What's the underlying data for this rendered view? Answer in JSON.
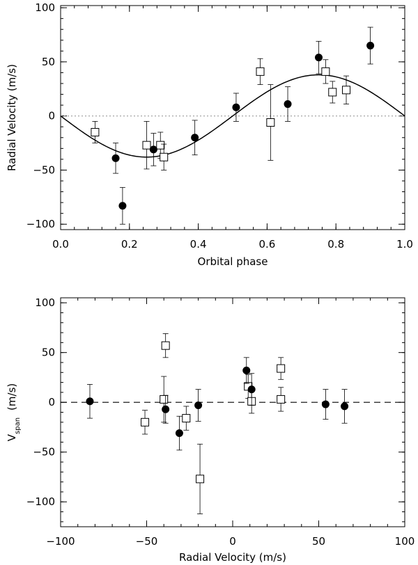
{
  "chart_data": [
    {
      "type": "scatter",
      "id": "rv-phase",
      "xlabel": "Orbital phase",
      "ylabel": "Radial Velocity (m/s)",
      "xlim": [
        0.0,
        1.0
      ],
      "ylim": [
        -105,
        102
      ],
      "xticks": [
        0.0,
        0.2,
        0.4,
        0.6,
        0.8,
        1.0
      ],
      "xtick_labels": [
        "0.0",
        "0.2",
        "0.4",
        "0.6",
        "0.8",
        "1.0"
      ],
      "yticks": [
        -100,
        -50,
        0,
        50,
        100
      ],
      "ytick_labels": [
        "−100",
        "−50",
        "0",
        "50",
        "100"
      ],
      "model": {
        "type": "sine",
        "amplitude": 38,
        "phase_of_max": 0.75
      },
      "reference_line": {
        "y": 0,
        "style": "dotted"
      },
      "series": [
        {
          "name": "open squares",
          "marker": "square-open",
          "points": [
            {
              "x": 0.1,
              "y": -15,
              "err": 10
            },
            {
              "x": 0.25,
              "y": -27,
              "err": 22
            },
            {
              "x": 0.29,
              "y": -27,
              "err": 12
            },
            {
              "x": 0.3,
              "y": -38,
              "err": 12
            },
            {
              "x": 0.58,
              "y": 41,
              "err": 12
            },
            {
              "x": 0.61,
              "y": -6,
              "err": 35
            },
            {
              "x": 0.77,
              "y": 41,
              "err": 11
            },
            {
              "x": 0.79,
              "y": 22,
              "err": 10
            },
            {
              "x": 0.83,
              "y": 24,
              "err": 13
            }
          ]
        },
        {
          "name": "filled circles",
          "marker": "circle-filled",
          "points": [
            {
              "x": 0.16,
              "y": -39,
              "err": 14
            },
            {
              "x": 0.18,
              "y": -83,
              "err": 17
            },
            {
              "x": 0.27,
              "y": -31,
              "err": 15
            },
            {
              "x": 0.39,
              "y": -20,
              "err": 16
            },
            {
              "x": 0.51,
              "y": 8,
              "err": 13
            },
            {
              "x": 0.66,
              "y": 11,
              "err": 16
            },
            {
              "x": 0.75,
              "y": 54,
              "err": 15
            },
            {
              "x": 0.9,
              "y": 65,
              "err": 17
            }
          ]
        }
      ]
    },
    {
      "type": "scatter",
      "id": "vspan-rv",
      "xlabel": "Radial Velocity (m/s)",
      "ylabel_main": "V",
      "ylabel_sub": "span",
      "ylabel_rest": "(m/s)",
      "xlim": [
        -100,
        100
      ],
      "ylim": [
        -125,
        105
      ],
      "xticks": [
        -100,
        -50,
        0,
        50,
        100
      ],
      "xtick_labels": [
        "−100",
        "−50",
        "0",
        "50",
        "100"
      ],
      "yticks": [
        -100,
        -50,
        0,
        50,
        100
      ],
      "ytick_labels": [
        "−100",
        "−50",
        "0",
        "50",
        "100"
      ],
      "reference_line": {
        "y": 0,
        "style": "dashed"
      },
      "series": [
        {
          "name": "open squares",
          "marker": "square-open",
          "points": [
            {
              "x": -51,
              "y": -20,
              "err": 12
            },
            {
              "x": -40,
              "y": 3,
              "err": 23
            },
            {
              "x": -39,
              "y": 57,
              "err": 12
            },
            {
              "x": -27,
              "y": -16,
              "err": 12
            },
            {
              "x": -19,
              "y": -77,
              "err": 35
            },
            {
              "x": 9,
              "y": 16,
              "err": 12
            },
            {
              "x": 11,
              "y": 1,
              "err": 12
            },
            {
              "x": 28,
              "y": 3,
              "err": 12
            },
            {
              "x": 28,
              "y": 34,
              "err": 11
            }
          ]
        },
        {
          "name": "filled circles",
          "marker": "circle-filled",
          "points": [
            {
              "x": -83,
              "y": 1,
              "err": 17
            },
            {
              "x": -39,
              "y": -7,
              "err": 14
            },
            {
              "x": -31,
              "y": -31,
              "err": 17
            },
            {
              "x": -20,
              "y": -3,
              "err": 16
            },
            {
              "x": 8,
              "y": 32,
              "err": 13
            },
            {
              "x": 11,
              "y": 13,
              "err": 16
            },
            {
              "x": 54,
              "y": -2,
              "err": 15
            },
            {
              "x": 65,
              "y": -4,
              "err": 17
            }
          ]
        }
      ]
    }
  ]
}
